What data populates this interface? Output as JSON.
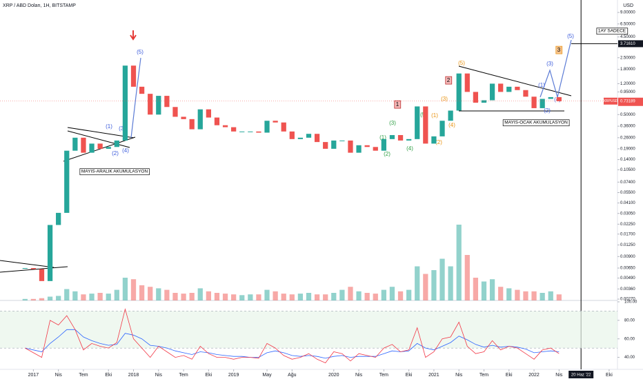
{
  "header": {
    "title": "XRP / ABD Doları, 1H, BITSTAMP"
  },
  "chart_data": {
    "type": "candlestick",
    "y_unit": "USD",
    "log_scale": true,
    "x": [
      "2016-12",
      "2017-01",
      "2017-02",
      "2017-03",
      "2017-04",
      "2017-05",
      "2017-06",
      "2017-07",
      "2017-08",
      "2017-09",
      "2017-10",
      "2017-11",
      "2017-12",
      "2018-01",
      "2018-02",
      "2018-03",
      "2018-04",
      "2018-05",
      "2018-06",
      "2018-07",
      "2018-08",
      "2018-09",
      "2018-10",
      "2018-11",
      "2018-12",
      "2019-01",
      "2019-02",
      "2019-03",
      "2019-04",
      "2019-05",
      "2019-06",
      "2019-07",
      "2019-08",
      "2019-09",
      "2019-10",
      "2019-11",
      "2019-12",
      "2020-01",
      "2020-02",
      "2020-03",
      "2020-04",
      "2020-05",
      "2020-06",
      "2020-07",
      "2020-08",
      "2020-09",
      "2020-10",
      "2020-11",
      "2020-12",
      "2021-01",
      "2021-02",
      "2021-03",
      "2021-04",
      "2021-05",
      "2021-06",
      "2021-07",
      "2021-08",
      "2021-09",
      "2021-10",
      "2021-11",
      "2021-12",
      "2022-01",
      "2022-02",
      "2022-03",
      "2022-04"
    ],
    "close": [
      0.0065,
      0.0063,
      0.0045,
      0.022,
      0.031,
      0.18,
      0.26,
      0.17,
      0.22,
      0.19,
      0.2,
      0.24,
      2.0,
      1.1,
      0.9,
      0.5,
      0.85,
      0.62,
      0.47,
      0.44,
      0.33,
      0.58,
      0.46,
      0.37,
      0.35,
      0.31,
      0.31,
      0.31,
      0.3,
      0.42,
      0.4,
      0.31,
      0.25,
      0.26,
      0.29,
      0.23,
      0.19,
      0.24,
      0.24,
      0.17,
      0.21,
      0.2,
      0.18,
      0.25,
      0.28,
      0.24,
      0.25,
      0.63,
      0.22,
      0.27,
      0.42,
      0.56,
      1.6,
      0.95,
      0.7,
      0.75,
      1.2,
      0.95,
      1.1,
      1.0,
      0.83,
      0.6,
      0.78,
      0.82,
      0.73
    ],
    "up_color": "#26a69a",
    "down_color": "#ef5350",
    "volume": [
      2,
      2,
      3,
      5,
      6,
      15,
      12,
      8,
      9,
      10,
      9,
      14,
      30,
      28,
      20,
      18,
      16,
      14,
      10,
      9,
      10,
      16,
      12,
      10,
      9,
      8,
      7,
      8,
      8,
      14,
      12,
      9,
      8,
      9,
      10,
      8,
      8,
      10,
      14,
      18,
      12,
      10,
      9,
      14,
      18,
      12,
      14,
      45,
      35,
      40,
      55,
      45,
      100,
      60,
      30,
      25,
      28,
      18,
      16,
      14,
      12,
      12,
      10,
      12,
      8
    ],
    "xlim": [
      "2016-09",
      "2022-11"
    ],
    "ylim": [
      0.0026,
      12.8
    ],
    "xticks": [
      {
        "value": "2017-01",
        "label": "2017"
      },
      {
        "value": "2017-04",
        "label": "Nis"
      },
      {
        "value": "2017-07",
        "label": "Tem"
      },
      {
        "value": "2017-10",
        "label": "Eki"
      },
      {
        "value": "2018-01",
        "label": "2018"
      },
      {
        "value": "2018-04",
        "label": "Nis"
      },
      {
        "value": "2018-07",
        "label": "Tem"
      },
      {
        "value": "2018-10",
        "label": "Eki"
      },
      {
        "value": "2019-01",
        "label": "2019"
      },
      {
        "value": "2019-05",
        "label": "May"
      },
      {
        "value": "2019-08",
        "label": "Ağu"
      },
      {
        "value": "2020-01",
        "label": "2020"
      },
      {
        "value": "2020-04",
        "label": "Nis"
      },
      {
        "value": "2020-07",
        "label": "Tem"
      },
      {
        "value": "2020-10",
        "label": "Eki"
      },
      {
        "value": "2021-01",
        "label": "2021"
      },
      {
        "value": "2021-04",
        "label": "Nis"
      },
      {
        "value": "2021-07",
        "label": "Tem"
      },
      {
        "value": "2021-10",
        "label": "Eki"
      },
      {
        "value": "2022-01",
        "label": "2022"
      },
      {
        "value": "2022-04",
        "label": "Nis"
      },
      {
        "value": "2022-10",
        "label": "Eki"
      }
    ],
    "yticks": [
      {
        "value": 9,
        "label": "9.00000"
      },
      {
        "value": 6.5,
        "label": "6.50000"
      },
      {
        "value": 4.5,
        "label": "4.50000"
      },
      {
        "value": 2.5,
        "label": "2.50000"
      },
      {
        "value": 1.8,
        "label": "1.80000"
      },
      {
        "value": 1.2,
        "label": "1.20000"
      },
      {
        "value": 0.95,
        "label": "0.95000"
      },
      {
        "value": 0.5,
        "label": "0.50000"
      },
      {
        "value": 0.36,
        "label": "0.36000"
      },
      {
        "value": 0.26,
        "label": "0.26000"
      },
      {
        "value": 0.19,
        "label": "0.19000"
      },
      {
        "value": 0.14,
        "label": "0.14000"
      },
      {
        "value": 0.105,
        "label": "0.10500"
      },
      {
        "value": 0.074,
        "label": "0.07400"
      },
      {
        "value": 0.055,
        "label": "0.05500"
      },
      {
        "value": 0.041,
        "label": "0.04100"
      },
      {
        "value": 0.0305,
        "label": "0.03050"
      },
      {
        "value": 0.0225,
        "label": "0.02250"
      },
      {
        "value": 0.017,
        "label": "0.01700"
      },
      {
        "value": 0.0125,
        "label": "0.01250"
      },
      {
        "value": 0.009,
        "label": "0.00900"
      },
      {
        "value": 0.0065,
        "label": "0.00650"
      },
      {
        "value": 0.0049,
        "label": "0.00490"
      },
      {
        "value": 0.0036,
        "label": "0.00360"
      },
      {
        "value": 0.0027,
        "label": "0.00270"
      }
    ],
    "target_line": {
      "value": 3.7161,
      "label": "3.71610"
    },
    "last_price": {
      "symbol": "XRPUSD",
      "value": 0.73189,
      "label": "0.73189"
    },
    "crosshair": {
      "x": "2022-06-20",
      "label": "20 Haz '22"
    },
    "annotations": [
      "(1)",
      "(3)",
      "(2)",
      "(4)",
      "(5)",
      "MAYIS-ARALIK AKUMULASYON",
      "(1)",
      "(2)",
      "(3)",
      "(4)",
      "(5)",
      "(1)",
      "(2)",
      "(3)",
      "(4)",
      "(5)",
      "(1)",
      "(3)",
      "(4)",
      "(2)",
      "(5)",
      "1",
      "2",
      "3",
      "MAYIS-OCAK AKUMULASYON",
      "1AY SADECE"
    ],
    "rsi": {
      "values": [
        50,
        45,
        40,
        80,
        75,
        85,
        70,
        48,
        55,
        52,
        50,
        56,
        92,
        60,
        50,
        40,
        52,
        46,
        40,
        42,
        38,
        52,
        44,
        40,
        40,
        38,
        40,
        40,
        39,
        55,
        50,
        42,
        38,
        40,
        44,
        38,
        34,
        46,
        44,
        36,
        44,
        42,
        40,
        50,
        54,
        46,
        48,
        72,
        40,
        46,
        60,
        62,
        78,
        52,
        44,
        46,
        58,
        48,
        52,
        50,
        44,
        38,
        48,
        50,
        44
      ],
      "signal": [
        50,
        48,
        46,
        55,
        62,
        70,
        70,
        62,
        58,
        55,
        53,
        54,
        66,
        64,
        60,
        53,
        52,
        50,
        47,
        45,
        43,
        46,
        45,
        43,
        42,
        41,
        41,
        40,
        40,
        45,
        47,
        45,
        42,
        41,
        42,
        41,
        39,
        41,
        42,
        40,
        41,
        41,
        41,
        44,
        47,
        46,
        47,
        55,
        50,
        48,
        52,
        56,
        63,
        59,
        54,
        51,
        53,
        51,
        52,
        51,
        49,
        45,
        46,
        47,
        46
      ],
      "color": "#f23645",
      "signal_color": "#2962ff",
      "ylim": [
        30,
        100
      ],
      "band": [
        50,
        90
      ],
      "yticks": [
        {
          "value": 100,
          "label": "100.00"
        },
        {
          "value": 80,
          "label": "80.00"
        },
        {
          "value": 60,
          "label": "60.00"
        },
        {
          "value": 40,
          "label": "40.00"
        }
      ]
    }
  }
}
